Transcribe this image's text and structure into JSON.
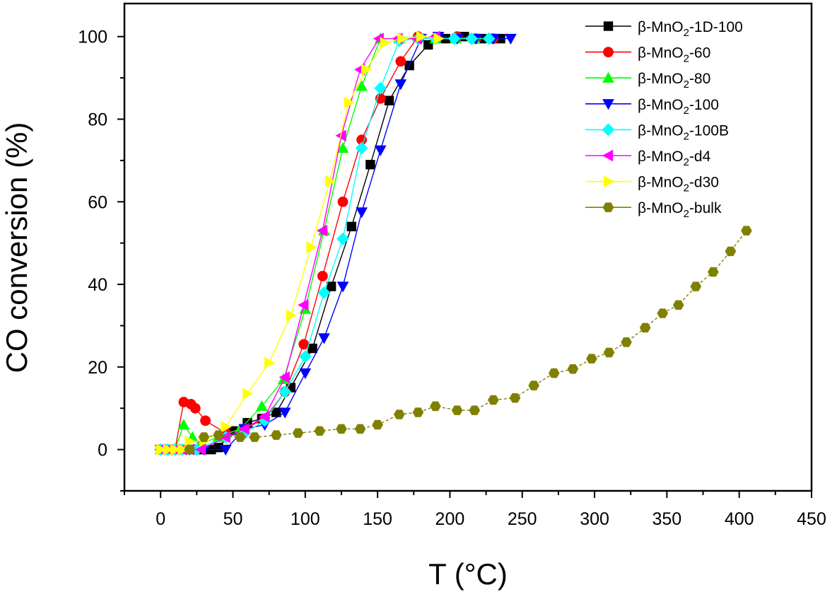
{
  "chart_data": {
    "type": "line",
    "title": "",
    "xlabel": "T (°C)",
    "ylabel": "CO conversion (%)",
    "xlim": [
      -25,
      450
    ],
    "ylim": [
      -10,
      108
    ],
    "xticks": [
      0,
      50,
      100,
      150,
      200,
      250,
      300,
      350,
      400,
      450
    ],
    "yticks": [
      0,
      20,
      40,
      60,
      80,
      100
    ],
    "grid": false,
    "legend_position": "top-right",
    "series": [
      {
        "name": "β-MnO2-1D-100",
        "legend_parts": [
          "β-MnO",
          "2",
          "-1D-100"
        ],
        "color": "#000000",
        "marker": "square",
        "x": [
          0,
          5,
          10,
          15,
          20,
          25,
          30,
          35,
          40,
          50,
          60,
          70,
          80,
          90,
          105,
          118,
          132,
          145,
          158,
          172,
          185,
          197,
          210,
          222,
          235
        ],
        "y": [
          0,
          0,
          0,
          0,
          0,
          0,
          0,
          0,
          0.5,
          4.5,
          6.5,
          7.5,
          9,
          15,
          24.5,
          39.5,
          54,
          69,
          84.5,
          93,
          98,
          99.5,
          100,
          99.5,
          99.5
        ]
      },
      {
        "name": "β-MnO2-60",
        "legend_parts": [
          "β-MnO",
          "2",
          "-60"
        ],
        "color": "#ff0000",
        "marker": "circle",
        "x": [
          0,
          5,
          10,
          16,
          21,
          24,
          31,
          45,
          58,
          72,
          86,
          99,
          112,
          126,
          139,
          152,
          166,
          178,
          190,
          205,
          218,
          230
        ],
        "y": [
          0,
          0,
          0,
          11.5,
          11,
          10,
          7,
          4,
          5,
          7.5,
          14,
          25.5,
          42,
          60,
          75,
          85,
          94,
          100,
          99.5,
          100,
          99.5,
          99.5
        ]
      },
      {
        "name": "β-MnO2-80",
        "legend_parts": [
          "β-MnO",
          "2",
          "-80"
        ],
        "color": "#00ff00",
        "marker": "triangle-up",
        "x": [
          0,
          5,
          10,
          16,
          22,
          28,
          40,
          55,
          70,
          85,
          100,
          113,
          126,
          139,
          152,
          165,
          178,
          190,
          204,
          217
        ],
        "y": [
          0,
          0,
          0,
          6,
          3,
          1.5,
          3,
          5,
          10.5,
          17,
          34,
          53,
          73,
          88,
          99.5,
          99.5,
          100,
          99.5,
          99.5,
          99.5
        ]
      },
      {
        "name": "β-MnO2-100",
        "legend_parts": [
          "β-MnO",
          "2",
          "-100"
        ],
        "color": "#0000ff",
        "marker": "triangle-down",
        "x": [
          0,
          5,
          10,
          15,
          20,
          30,
          45,
          58,
          72,
          86,
          100,
          113,
          126,
          139,
          152,
          166,
          180,
          192,
          205,
          218,
          230,
          242
        ],
        "y": [
          0,
          0,
          0,
          0,
          0,
          0,
          0,
          5,
          6,
          9,
          18.5,
          27,
          39.5,
          57.5,
          72.5,
          88.5,
          99.5,
          100,
          99.5,
          99.5,
          99.5,
          99.5
        ]
      },
      {
        "name": "β-MnO2-100B",
        "legend_parts": [
          "β-MnO",
          "2",
          "-100B"
        ],
        "color": "#00ffff",
        "marker": "diamond",
        "x": [
          0,
          5,
          10,
          15,
          25,
          45,
          58,
          72,
          86,
          100,
          113,
          126,
          139,
          152,
          165,
          178,
          190,
          203,
          215,
          227
        ],
        "y": [
          0,
          0,
          0,
          0,
          0,
          3,
          4,
          7,
          14,
          22.5,
          38,
          51,
          73,
          87.5,
          99,
          99.5,
          99.5,
          99.5,
          99.5,
          99.5
        ]
      },
      {
        "name": "β-MnO2-d4",
        "legend_parts": [
          "β-MnO",
          "2",
          "-d4"
        ],
        "color": "#ff00ff",
        "marker": "triangle-left",
        "x": [
          0,
          5,
          10,
          15,
          20,
          28,
          45,
          58,
          72,
          86,
          99,
          112,
          125,
          138,
          151,
          164,
          177,
          190
        ],
        "y": [
          0,
          0,
          0,
          0,
          0,
          0,
          3,
          5,
          8,
          17.5,
          35,
          53,
          76,
          92,
          99.5,
          99.5,
          99.5,
          100
        ]
      },
      {
        "name": "β-MnO2-d30",
        "legend_parts": [
          "β-MnO",
          "2",
          "-d30"
        ],
        "color": "#ffff00",
        "marker": "triangle-right",
        "x": [
          0,
          5,
          10,
          15,
          20,
          30,
          45,
          60,
          75,
          90,
          104,
          117,
          130,
          142,
          155,
          167,
          180,
          192
        ],
        "y": [
          0,
          0,
          0,
          0,
          2,
          2,
          5.5,
          13.5,
          21,
          32.5,
          49,
          65,
          84,
          92,
          98.5,
          99.5,
          100,
          99.5
        ]
      },
      {
        "name": "β-MnO2-bulk",
        "legend_parts": [
          "β-MnO",
          "2",
          "-bulk"
        ],
        "color": "#808000",
        "marker": "hexagon",
        "x": [
          20,
          30,
          40,
          55,
          65,
          80,
          95,
          110,
          125,
          138,
          150,
          165,
          178,
          190,
          205,
          217,
          230,
          245,
          258,
          272,
          285,
          298,
          310,
          322,
          335,
          347,
          358,
          370,
          382,
          394,
          405
        ],
        "y": [
          0,
          3,
          3.5,
          3,
          3,
          3.5,
          4,
          4.5,
          5,
          5,
          6,
          8.5,
          9,
          10.5,
          9.5,
          9.5,
          12,
          12.5,
          15.5,
          18.5,
          19.5,
          22,
          23.5,
          26,
          29.5,
          33,
          35,
          39.5,
          43,
          48,
          53
        ]
      }
    ]
  }
}
